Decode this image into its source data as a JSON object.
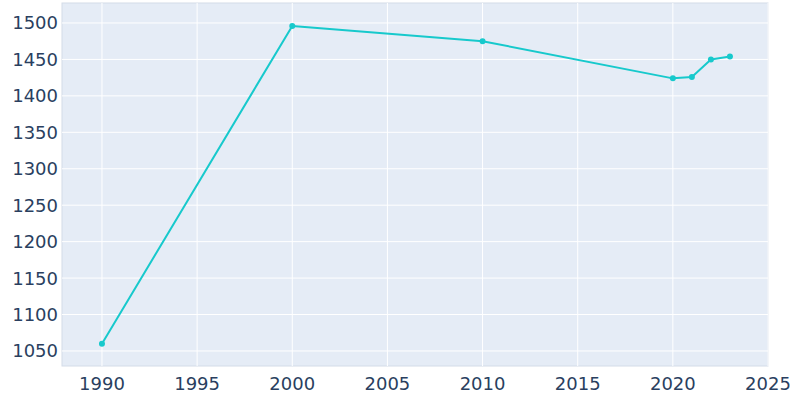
{
  "chart_data": {
    "type": "line",
    "x": [
      1990,
      2000,
      2010,
      2020,
      2021,
      2022,
      2023
    ],
    "values": [
      1060,
      1496,
      1475,
      1424,
      1426,
      1450,
      1454
    ],
    "color": "#17c9cc",
    "marker": "circle",
    "xlim": [
      1987.9,
      2025
    ],
    "xticks": [
      1990,
      1995,
      2000,
      2005,
      2010,
      2015,
      2020,
      2025
    ],
    "ylim": [
      1029.4,
      1527.4
    ],
    "yticks": [
      1050,
      1100,
      1150,
      1200,
      1250,
      1300,
      1350,
      1400,
      1450,
      1500
    ],
    "grid": true
  }
}
